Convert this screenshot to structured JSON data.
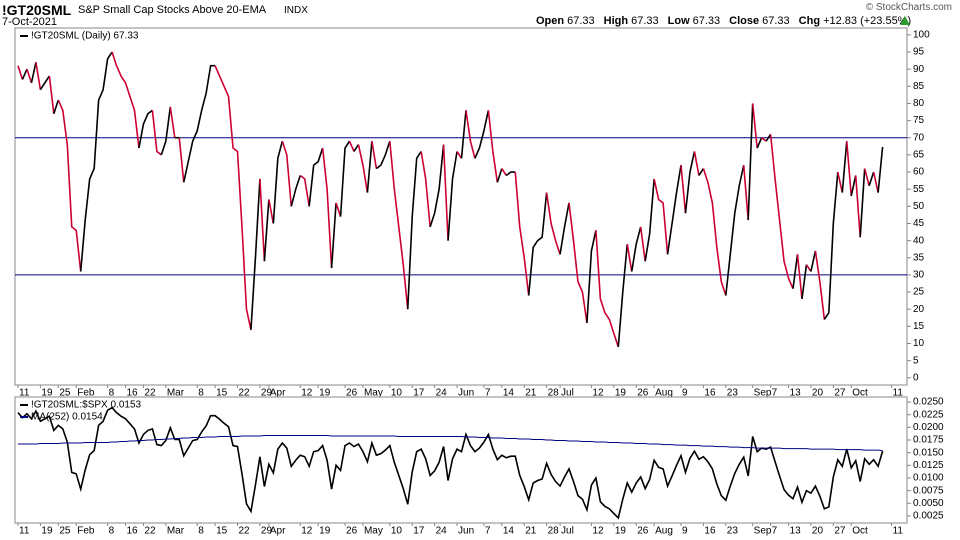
{
  "header": {
    "symbol": "!GT20SML",
    "name": "S&P Small Cap Stocks Above 20-EMA",
    "exchange": "INDX",
    "date": "7-Oct-2021",
    "quote": [
      {
        "label": "Open",
        "value": 67.33
      },
      {
        "label": "High",
        "value": 67.33
      },
      {
        "label": "Low",
        "value": 67.33
      },
      {
        "label": "Close",
        "value": 67.33
      },
      {
        "label": "Chg",
        "value": "+12.83 (+23.55%)"
      }
    ],
    "copyright": "© StockCharts.com"
  },
  "chart_data": [
    {
      "type": "line",
      "ylim": [
        -2.1,
        102
      ],
      "yticks": [
        0,
        5,
        10,
        15,
        20,
        25,
        30,
        35,
        40,
        45,
        50,
        55,
        60,
        65,
        70,
        75,
        80,
        85,
        90,
        95,
        100
      ],
      "grid": false,
      "hlines": [
        70,
        30
      ],
      "hline_color": "#000080",
      "categories": [
        "11",
        null,
        null,
        null,
        null,
        "19",
        null,
        null,
        null,
        "25",
        null,
        null,
        null,
        "Feb",
        null,
        null,
        null,
        null,
        null,
        null,
        "8",
        null,
        null,
        null,
        "16",
        null,
        null,
        null,
        "22",
        null,
        null,
        null,
        null,
        "Mar",
        null,
        null,
        null,
        null,
        null,
        null,
        "8",
        null,
        null,
        null,
        "15",
        null,
        null,
        null,
        null,
        "22",
        null,
        null,
        null,
        null,
        "29",
        null,
        "Apr",
        null,
        null,
        null,
        null,
        null,
        null,
        "12",
        null,
        null,
        null,
        "19",
        null,
        null,
        null,
        null,
        null,
        "26",
        null,
        null,
        null,
        "May",
        null,
        null,
        null,
        null,
        null,
        "10",
        null,
        null,
        null,
        null,
        "17",
        null,
        null,
        null,
        null,
        "24",
        null,
        null,
        null,
        null,
        "Jun",
        null,
        null,
        null,
        null,
        null,
        "7",
        null,
        null,
        null,
        "14",
        null,
        null,
        null,
        null,
        "21",
        null,
        null,
        null,
        null,
        "28",
        null,
        null,
        "Jul",
        null,
        null,
        null,
        null,
        null,
        null,
        "12",
        null,
        null,
        null,
        null,
        "19",
        null,
        null,
        null,
        null,
        "26",
        null,
        null,
        null,
        "Aug",
        null,
        null,
        null,
        null,
        null,
        "9",
        null,
        null,
        null,
        null,
        "16",
        null,
        null,
        null,
        null,
        "23",
        null,
        null,
        null,
        null,
        null,
        "Sep",
        null,
        null,
        null,
        "7",
        null,
        null,
        null,
        "13",
        null,
        null,
        null,
        null,
        "20",
        null,
        null,
        null,
        null,
        "27",
        null,
        null,
        null,
        "Oct",
        null,
        null,
        null,
        null,
        null,
        null,
        null,
        null,
        "11",
        null,
        null,
        null
      ],
      "series": [
        {
          "name": "!GT20SML (Daily) 67.33",
          "up_color": "#000000",
          "down_color": "#cc0033",
          "values": [
            91,
            87,
            90,
            86,
            92,
            84,
            86,
            88,
            77,
            81,
            78,
            68,
            44,
            43,
            31,
            46,
            58,
            61,
            81,
            84,
            93,
            95,
            91,
            88,
            86,
            82,
            78,
            67,
            74,
            77,
            78,
            66,
            65,
            69,
            79,
            70,
            70,
            57,
            63,
            69,
            72,
            78,
            83,
            91,
            91,
            88,
            85,
            82,
            67,
            66,
            44,
            20,
            14,
            35,
            58,
            34,
            52,
            45,
            64,
            69,
            65,
            50,
            55,
            59,
            58,
            50,
            62,
            63,
            67,
            55,
            32,
            51,
            47,
            67,
            69,
            66,
            68,
            62,
            54,
            69,
            61,
            62,
            65,
            69,
            55,
            44,
            33,
            20,
            47,
            64,
            66,
            58,
            44,
            48,
            55,
            68,
            40,
            58,
            66,
            64,
            78,
            69,
            64,
            67,
            72,
            78,
            66,
            57,
            61,
            59,
            60,
            60,
            44,
            35,
            24,
            38,
            40,
            41,
            54,
            45,
            40,
            36,
            44,
            51,
            40,
            28,
            25,
            16,
            37,
            43,
            23,
            19,
            17,
            13,
            9,
            25,
            39,
            31,
            39,
            44,
            34,
            42,
            58,
            52,
            51,
            36,
            45,
            54,
            62,
            48,
            60,
            66,
            59,
            61,
            57,
            51,
            38,
            28,
            24,
            36,
            48,
            56,
            62,
            46,
            80,
            67,
            70,
            69,
            71,
            58,
            46,
            34,
            29,
            26,
            36,
            23,
            33,
            31,
            37,
            28,
            17,
            19,
            45,
            60,
            54,
            69,
            53,
            59,
            41,
            61,
            56,
            60,
            54,
            67.33,
            null,
            null,
            null,
            null,
            null
          ]
        }
      ]
    },
    {
      "type": "line",
      "ylim": [
        0.0011,
        0.026
      ],
      "grid": false,
      "yticks": [
        0.0025,
        {
          "value": 0.005,
          "label": "0.0050"
        },
        0.0075,
        {
          "value": 0.01,
          "label": "0.0100"
        },
        0.0125,
        {
          "value": 0.015,
          "label": "0.0150"
        },
        0.0175,
        {
          "value": 0.02,
          "label": "0.0200"
        },
        0.0225,
        {
          "value": 0.025,
          "label": "0.0250"
        }
      ],
      "series": [
        {
          "name": "!GT20SML:$SPX 0.0153",
          "color": "#000000",
          "values": [
            0.0229,
            0.0219,
            0.0227,
            0.0217,
            0.0232,
            0.0212,
            0.0217,
            0.0222,
            0.0194,
            0.0204,
            0.0197,
            0.0171,
            0.0111,
            0.0108,
            0.0078,
            0.0116,
            0.0146,
            0.0154,
            0.0204,
            0.0212,
            0.0234,
            0.0239,
            0.0229,
            0.0222,
            0.0217,
            0.0207,
            0.0197,
            0.0169,
            0.0186,
            0.0194,
            0.0197,
            0.0166,
            0.0164,
            0.0174,
            0.0199,
            0.0176,
            0.0176,
            0.0144,
            0.0159,
            0.0174,
            0.0176,
            0.0191,
            0.0203,
            0.0223,
            0.0223,
            0.0216,
            0.0208,
            0.0201,
            0.0164,
            0.0162,
            0.0108,
            0.0049,
            0.0034,
            0.0086,
            0.0142,
            0.0083,
            0.0127,
            0.011,
            0.0157,
            0.0169,
            0.0159,
            0.0123,
            0.0135,
            0.0145,
            0.0142,
            0.0123,
            0.0152,
            0.0154,
            0.0164,
            0.0135,
            0.0078,
            0.0125,
            0.0115,
            0.0164,
            0.0169,
            0.0162,
            0.0167,
            0.0152,
            0.0132,
            0.0169,
            0.0145,
            0.0148,
            0.0155,
            0.0164,
            0.0131,
            0.0105,
            0.0079,
            0.0048,
            0.0112,
            0.0152,
            0.0157,
            0.0138,
            0.0105,
            0.0114,
            0.0131,
            0.0162,
            0.0095,
            0.0138,
            0.0157,
            0.0152,
            0.0186,
            0.0164,
            0.0152,
            0.0159,
            0.0171,
            0.0186,
            0.0157,
            0.0136,
            0.0145,
            0.014,
            0.0143,
            0.0143,
            0.0105,
            0.0083,
            0.0057,
            0.009,
            0.0095,
            0.0098,
            0.0129,
            0.0107,
            0.0093,
            0.0084,
            0.0102,
            0.0118,
            0.0093,
            0.0065,
            0.0058,
            0.0037,
            0.0086,
            0.01,
            0.0053,
            0.0044,
            0.0039,
            0.003,
            0.0021,
            0.0058,
            0.009,
            0.0072,
            0.009,
            0.0102,
            0.0079,
            0.0097,
            0.0135,
            0.0121,
            0.0118,
            0.0084,
            0.0104,
            0.0125,
            0.0144,
            0.0111,
            0.0139,
            0.0153,
            0.0137,
            0.0142,
            0.0132,
            0.0118,
            0.0088,
            0.0065,
            0.0056,
            0.0084,
            0.0109,
            0.0127,
            0.0141,
            0.0104,
            0.0182,
            0.0152,
            0.0159,
            0.0157,
            0.0161,
            0.0132,
            0.0104,
            0.0077,
            0.0066,
            0.0059,
            0.0082,
            0.0052,
            0.0075,
            0.007,
            0.0084,
            0.0064,
            0.0039,
            0.0043,
            0.0102,
            0.0136,
            0.0123,
            0.0157,
            0.012,
            0.0134,
            0.0093,
            0.0138,
            0.0127,
            0.0136,
            0.0123,
            0.0153,
            null,
            null,
            null,
            null,
            null
          ]
        },
        {
          "name": "MA(252) 0.0154",
          "color": "#000080",
          "values": [
            0.0167,
            0.0167,
            0.0167,
            0.0167,
            0.0167,
            0.0168,
            0.0168,
            0.0168,
            0.0168,
            0.0168,
            0.0169,
            0.0169,
            0.0169,
            0.0169,
            0.0169,
            0.017,
            0.017,
            0.017,
            0.017,
            0.017,
            0.017,
            0.0171,
            0.0171,
            0.0172,
            0.0172,
            0.0173,
            0.0173,
            0.0174,
            0.0174,
            0.0175,
            0.0175,
            0.0176,
            0.0176,
            0.0177,
            0.0177,
            0.0178,
            0.0178,
            0.0179,
            0.0179,
            0.018,
            0.018,
            0.018,
            0.0181,
            0.0181,
            0.0181,
            0.0182,
            0.0182,
            0.0182,
            0.0182,
            0.0182,
            0.0183,
            0.0183,
            0.0183,
            0.0183,
            0.0183,
            0.0184,
            0.0184,
            0.0184,
            0.0184,
            0.0184,
            0.0184,
            0.0184,
            0.0184,
            0.0184,
            0.0184,
            0.0184,
            0.0184,
            0.0184,
            0.0184,
            0.0184,
            0.0183,
            0.0183,
            0.0183,
            0.0183,
            0.0183,
            0.0183,
            0.0183,
            0.0183,
            0.0183,
            0.0183,
            0.0183,
            0.0183,
            0.0183,
            0.0183,
            0.0183,
            0.0182,
            0.0182,
            0.0182,
            0.0182,
            0.0182,
            0.0182,
            0.0182,
            0.0182,
            0.0182,
            0.0182,
            0.0182,
            0.0182,
            0.0182,
            0.0182,
            0.0182,
            0.0181,
            0.0181,
            0.0181,
            0.018,
            0.018,
            0.018,
            0.0179,
            0.0179,
            0.0179,
            0.0178,
            0.0178,
            0.0178,
            0.0177,
            0.0177,
            0.0177,
            0.0176,
            0.0176,
            0.0176,
            0.0175,
            0.0175,
            0.0174,
            0.0174,
            0.0174,
            0.0173,
            0.0173,
            0.0173,
            0.0172,
            0.0172,
            0.0172,
            0.0171,
            0.0171,
            0.0171,
            0.017,
            0.017,
            0.017,
            0.0169,
            0.0169,
            0.0169,
            0.0168,
            0.0168,
            0.0168,
            0.0167,
            0.0167,
            0.0167,
            0.0166,
            0.0166,
            0.0166,
            0.0165,
            0.0165,
            0.0165,
            0.0164,
            0.0164,
            0.0164,
            0.0163,
            0.0163,
            0.0163,
            0.0162,
            0.0162,
            0.0162,
            0.0161,
            0.0161,
            0.0161,
            0.016,
            0.016,
            0.016,
            0.0159,
            0.0159,
            0.0159,
            0.0159,
            0.0159,
            0.0159,
            0.0158,
            0.0158,
            0.0158,
            0.0158,
            0.0158,
            0.0158,
            0.0157,
            0.0157,
            0.0157,
            0.0157,
            0.0157,
            0.0157,
            0.0156,
            0.0156,
            0.0156,
            0.0156,
            0.0156,
            0.0156,
            0.0155,
            0.0155,
            0.0155,
            0.0155,
            0.0154,
            null,
            null,
            null,
            null,
            null
          ]
        }
      ]
    }
  ]
}
